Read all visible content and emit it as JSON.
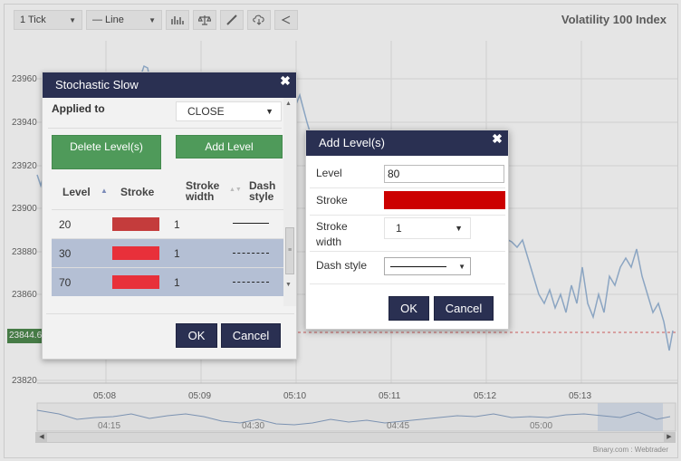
{
  "toolbar": {
    "interval": "1 Tick",
    "chart_type": "— Line",
    "icons": [
      "indicators-icon",
      "compare-icon",
      "draw-icon",
      "download-icon",
      "share-icon"
    ]
  },
  "chart": {
    "title": "Volatility 100 Index",
    "current_price": "23844.6",
    "credit": "Binary.com : Webtrader",
    "colors": {
      "line": "#9bb8d9",
      "price_box": "#4f8a4f",
      "price_line": "#e06666"
    }
  },
  "chart_data": {
    "type": "line",
    "ylim": [
      23820,
      23970
    ],
    "yticks": [
      "23960",
      "23940",
      "23920",
      "23900",
      "23880",
      "23860",
      "23820"
    ],
    "xticks": [
      "05:08",
      "05:09",
      "05:10",
      "05:11",
      "05:12",
      "05:13"
    ],
    "navigator_ticks": [
      "04:15",
      "04:30",
      "04:45",
      "05:00"
    ]
  },
  "stochastic": {
    "title": "Stochastic Slow",
    "applied_to_label": "Applied to",
    "applied_to_value": "CLOSE",
    "delete_label": "Delete Level(s)",
    "add_label": "Add Level",
    "headers": {
      "level": "Level",
      "stroke": "Stroke",
      "stroke_width": "Stroke width",
      "dash_style": "Dash style"
    },
    "levels": [
      {
        "level": "20",
        "stroke": "#c43c3c",
        "width": "1",
        "dash": "solid",
        "selected": false
      },
      {
        "level": "30",
        "stroke": "#e8303a",
        "width": "1",
        "dash": "dashed",
        "selected": true
      },
      {
        "level": "70",
        "stroke": "#e8303a",
        "width": "1",
        "dash": "dashed",
        "selected": true
      }
    ],
    "ok_label": "OK",
    "cancel_label": "Cancel"
  },
  "add_level": {
    "title": "Add Level(s)",
    "level_label": "Level",
    "level_value": "80",
    "stroke_label": "Stroke",
    "stroke_color": "#cc0000",
    "stroke_width_label": "Stroke width",
    "stroke_width_value": "1",
    "dash_style_label": "Dash style",
    "ok_label": "OK",
    "cancel_label": "Cancel"
  }
}
